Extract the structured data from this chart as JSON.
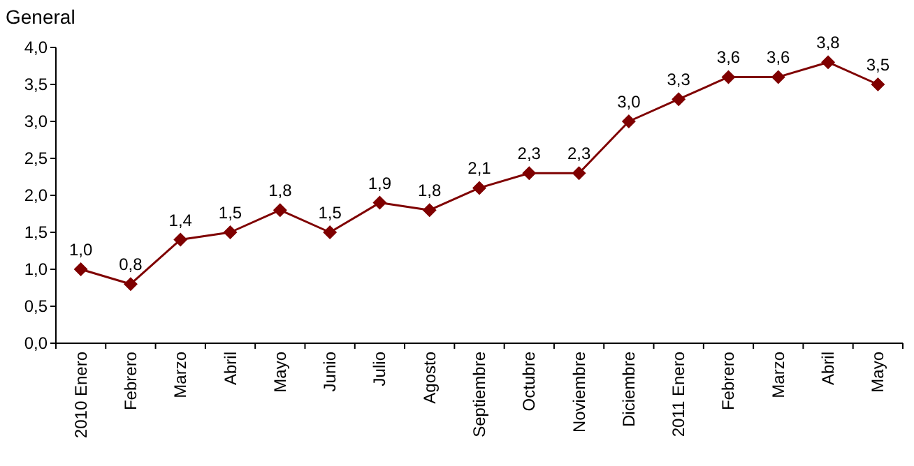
{
  "chart_data": {
    "type": "line",
    "title": "General",
    "categories": [
      "2010 Enero",
      "Febrero",
      "Marzo",
      "Abril",
      "Mayo",
      "Junio",
      "Julio",
      "Agosto",
      "Septiembre",
      "Octubre",
      "Noviembre",
      "Diciembre",
      "2011 Enero",
      "Febrero",
      "Marzo",
      "Abril",
      "Mayo"
    ],
    "series": [
      {
        "color": "#7f0000",
        "values": [
          1.0,
          0.8,
          1.4,
          1.5,
          1.8,
          1.5,
          1.9,
          1.8,
          2.1,
          2.3,
          2.3,
          3.0,
          3.3,
          3.6,
          3.6,
          3.8,
          3.5
        ],
        "value_labels": [
          "1,0",
          "0,8",
          "1,4",
          "1,5",
          "1,8",
          "1,5",
          "1,9",
          "1,8",
          "2,1",
          "2,3",
          "2,3",
          "3,0",
          "3,3",
          "3,6",
          "3,6",
          "3,8",
          "3,5"
        ]
      }
    ],
    "ylim": [
      0,
      4
    ],
    "yticks": [
      {
        "value": 0,
        "label": "0,0"
      },
      {
        "value": 0.5,
        "label": "0,5"
      },
      {
        "value": 1,
        "label": "1,0"
      },
      {
        "value": 1.5,
        "label": "1,5"
      },
      {
        "value": 2,
        "label": "2,0"
      },
      {
        "value": 2.5,
        "label": "2,5"
      },
      {
        "value": 3,
        "label": "3,0"
      },
      {
        "value": 3.5,
        "label": "3,5"
      },
      {
        "value": 4,
        "label": "4,0"
      }
    ],
    "grid": false,
    "marker": "diamond",
    "line_style": "solid"
  }
}
